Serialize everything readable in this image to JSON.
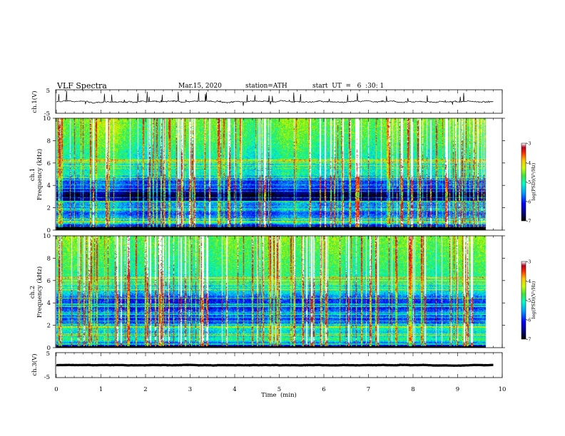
{
  "header": {
    "title": "VLF  Spectra",
    "date": "Mar.15, 2020",
    "station": "station=ATH",
    "start": "start  UT  =   6  :30: 1"
  },
  "chart_data": [
    {
      "id": "ch1-voltage",
      "type": "line",
      "ylabel": "ch.1(V)",
      "ylim": [
        -5,
        5
      ],
      "yticks": [
        "5",
        "-5"
      ],
      "xlim": [
        0,
        10
      ],
      "data_extent_min": 9.8,
      "baseline": 0,
      "noise_amplitude": 0.6,
      "color": "#000000"
    },
    {
      "id": "ch1-spectrogram",
      "type": "heatmap",
      "ylabel": "ch.1\nFrequency  (kHz)",
      "ylim": [
        0,
        10
      ],
      "yticks": [
        "0",
        "2",
        "4",
        "6",
        "8",
        "10"
      ],
      "xlim": [
        0,
        10
      ],
      "data_extent_min": 9.8,
      "colorbar": {
        "range": [
          -7,
          -3
        ],
        "ticks": [
          "-3",
          "-4",
          "-5",
          "-6",
          "-7"
        ],
        "label": "log(PSD)(V²/Hz)"
      },
      "background_profile": [
        [
          0.0,
          -6.6
        ],
        [
          0.3,
          -6.8
        ],
        [
          0.6,
          -5.0
        ],
        [
          0.9,
          -5.4
        ],
        [
          1.2,
          -5.6
        ],
        [
          1.5,
          -5.9
        ],
        [
          1.8,
          -5.4
        ],
        [
          2.1,
          -5.7
        ],
        [
          2.4,
          -5.5
        ],
        [
          2.7,
          -6.6
        ],
        [
          3.0,
          -6.9
        ],
        [
          3.3,
          -6.7
        ],
        [
          3.6,
          -6.2
        ],
        [
          4.0,
          -5.8
        ],
        [
          4.4,
          -5.9
        ],
        [
          4.8,
          -5.3
        ],
        [
          5.2,
          -5.0
        ],
        [
          5.6,
          -5.2
        ],
        [
          6.0,
          -5.1
        ],
        [
          7.0,
          -4.9
        ],
        [
          8.0,
          -4.7
        ],
        [
          9.0,
          -4.6
        ],
        [
          10.0,
          -4.5
        ]
      ],
      "sferics": 150,
      "sferic_level": -3.3,
      "bottom_black_band_khz": 0.25
    },
    {
      "id": "ch2-spectrogram",
      "type": "heatmap",
      "ylabel": "ch.2\nFrequency  (kHz)",
      "ylim": [
        0,
        10
      ],
      "yticks": [
        "0",
        "2",
        "4",
        "6",
        "8",
        "10"
      ],
      "xlim": [
        0,
        10
      ],
      "data_extent_min": 9.8,
      "colorbar": {
        "range": [
          -7,
          -3
        ],
        "ticks": [
          "-3",
          "-4",
          "-5",
          "-6",
          "-7"
        ],
        "label": "log(PSD)(V²/Hz)"
      },
      "background_profile": [
        [
          0.0,
          -6.5
        ],
        [
          0.3,
          -6.0
        ],
        [
          0.7,
          -4.8
        ],
        [
          1.0,
          -5.2
        ],
        [
          1.4,
          -5.3
        ],
        [
          1.7,
          -5.0
        ],
        [
          2.0,
          -5.4
        ],
        [
          2.4,
          -6.0
        ],
        [
          2.8,
          -5.8
        ],
        [
          3.2,
          -5.7
        ],
        [
          3.6,
          -6.1
        ],
        [
          4.0,
          -6.0
        ],
        [
          4.4,
          -5.9
        ],
        [
          4.8,
          -5.4
        ],
        [
          5.2,
          -5.1
        ],
        [
          5.6,
          -5.2
        ],
        [
          6.0,
          -5.0
        ],
        [
          7.0,
          -4.8
        ],
        [
          8.0,
          -4.7
        ],
        [
          9.0,
          -4.6
        ],
        [
          10.0,
          -4.5
        ]
      ],
      "sferics": 150,
      "sferic_level": -3.4,
      "bottom_black_band_khz": 0.1
    },
    {
      "id": "ch3-voltage",
      "type": "line",
      "ylabel": "ch.3(V)",
      "ylim": [
        -5,
        5
      ],
      "yticks": [
        "5",
        "-5"
      ],
      "xlim": [
        0,
        10
      ],
      "data_extent_min": 9.8,
      "baseline": 0,
      "noise_amplitude": 0.15,
      "color": "#000000"
    }
  ],
  "x_axis": {
    "label": "Time  (min)",
    "ticks": [
      "0",
      "1",
      "2",
      "3",
      "4",
      "5",
      "6",
      "7",
      "8",
      "9",
      "10"
    ]
  }
}
